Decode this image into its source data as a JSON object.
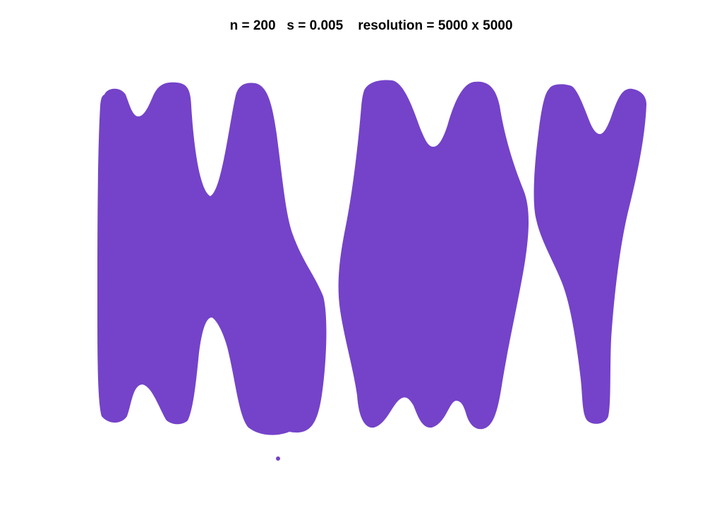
{
  "figure": {
    "title": "n = 200   s = 0.005    resolution = 5000 x 5000",
    "fill_color": "#7443C9",
    "background_color": "#ffffff"
  }
}
